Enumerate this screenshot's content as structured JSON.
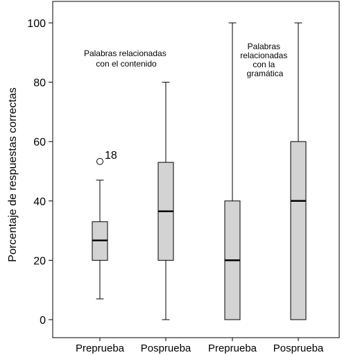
{
  "chart_data": {
    "type": "box",
    "ylabel": "Porcentaje de respuestas correctas",
    "ylim": [
      0,
      100
    ],
    "yticks": [
      0,
      20,
      40,
      60,
      80,
      100
    ],
    "categories": [
      "Preprueba",
      "Posprueba",
      "Preprueba",
      "Posprueba"
    ],
    "boxes": [
      {
        "category": "Preprueba",
        "min": 7,
        "q1": 20,
        "median": 26.7,
        "q3": 33,
        "max": 47,
        "outliers": [
          {
            "value": 53.3,
            "label": "18"
          }
        ]
      },
      {
        "category": "Posprueba",
        "min": 0,
        "q1": 20,
        "median": 36.5,
        "q3": 53,
        "max": 80,
        "outliers": []
      },
      {
        "category": "Preprueba",
        "min": 0,
        "q1": 0,
        "median": 20,
        "q3": 40,
        "max": 100,
        "outliers": []
      },
      {
        "category": "Posprueba",
        "min": 0,
        "q1": 0,
        "median": 40,
        "q3": 60,
        "max": 100,
        "outliers": []
      }
    ],
    "annotations": [
      {
        "lines": [
          "Palabras relacionadas",
          "con el contenido"
        ]
      },
      {
        "lines": [
          "Palabras",
          "relacionadas",
          "con la",
          "gramática"
        ]
      }
    ],
    "colors": {
      "box_fill": "#d3d3d3",
      "stroke": "#000000"
    }
  }
}
